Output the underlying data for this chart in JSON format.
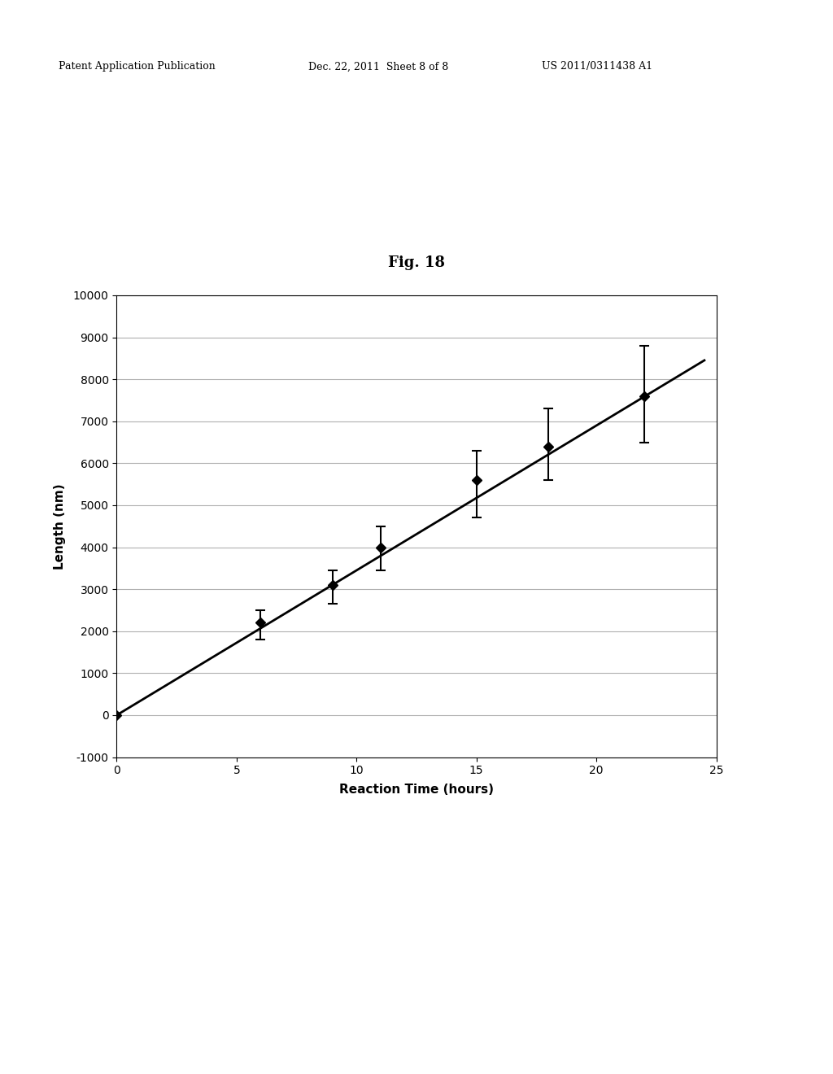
{
  "title": "Fig. 18",
  "xlabel": "Reaction Time (hours)",
  "ylabel": "Length (nm)",
  "header_left": "Patent Application Publication",
  "header_center": "Dec. 22, 2011  Sheet 8 of 8",
  "header_right": "US 2011/0311438 A1",
  "x": [
    0,
    6,
    9,
    11,
    15,
    18,
    22
  ],
  "y": [
    0,
    2200,
    3100,
    4000,
    5600,
    6400,
    7600
  ],
  "yerr_lower": [
    0,
    400,
    450,
    550,
    900,
    800,
    1100
  ],
  "yerr_upper": [
    0,
    300,
    350,
    500,
    700,
    900,
    1200
  ],
  "trendline_slope": 345,
  "trendline_intercept": 0,
  "xlim": [
    0,
    25
  ],
  "ylim": [
    -1000,
    10000
  ],
  "yticks": [
    -1000,
    0,
    1000,
    2000,
    3000,
    4000,
    5000,
    6000,
    7000,
    8000,
    9000,
    10000
  ],
  "xticks": [
    0,
    5,
    10,
    15,
    20,
    25
  ],
  "background_color": "#ffffff",
  "plot_bg_color": "#ffffff",
  "grid_color": "#b0b0b0",
  "line_color": "#000000",
  "marker_color": "#000000",
  "errorbar_color": "#000000",
  "title_fontsize": 13,
  "axis_label_fontsize": 11,
  "tick_fontsize": 10,
  "header_fontsize": 9
}
